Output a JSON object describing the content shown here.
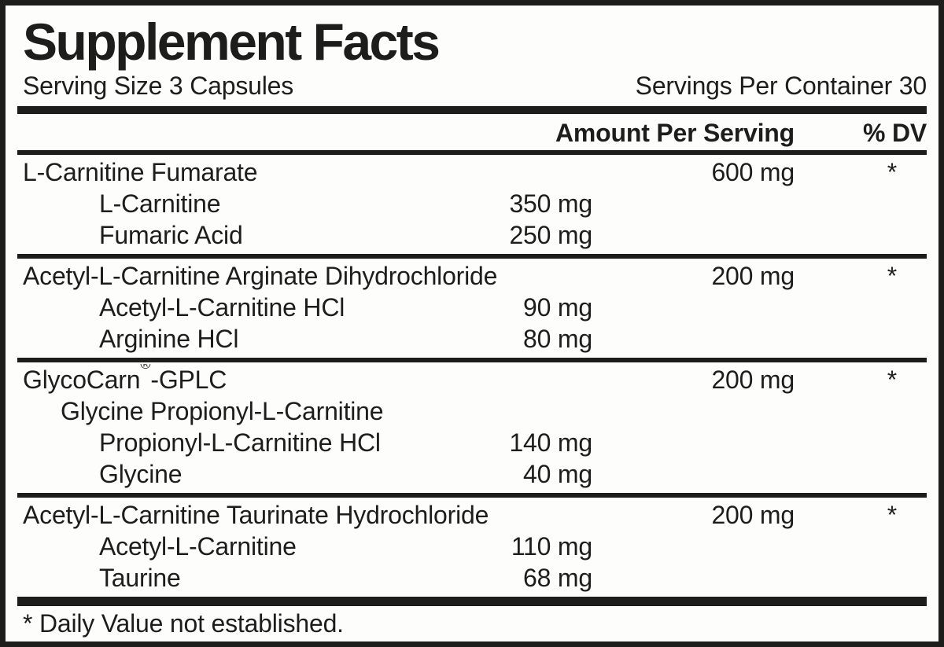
{
  "title": "Supplement Facts",
  "serving": {
    "size": "Serving Size 3 Capsules",
    "per_container": "Servings Per Container 30"
  },
  "header": {
    "amount": "Amount Per Serving",
    "dv": "% DV"
  },
  "groups": [
    {
      "rows": [
        {
          "name": "L-Carnitine Fumarate",
          "indent": 0,
          "amount": "600 mg",
          "amount_col": "main",
          "dv": "*"
        },
        {
          "name": "L-Carnitine",
          "indent": 2,
          "amount": "350 mg",
          "amount_col": "sub",
          "dv": ""
        },
        {
          "name": "Fumaric Acid",
          "indent": 2,
          "amount": "250 mg",
          "amount_col": "sub",
          "dv": ""
        }
      ]
    },
    {
      "rows": [
        {
          "name": "Acetyl-L-Carnitine Arginate Dihydrochloride",
          "indent": 0,
          "amount": "200 mg",
          "amount_col": "main",
          "dv": "*"
        },
        {
          "name": "Acetyl-L-Carnitine HCl",
          "indent": 2,
          "amount": "90 mg",
          "amount_col": "sub",
          "dv": ""
        },
        {
          "name": "Arginine HCl",
          "indent": 2,
          "amount": "80 mg",
          "amount_col": "sub",
          "dv": ""
        }
      ]
    },
    {
      "rows": [
        {
          "name": "GlycoCarn®-GPLC",
          "indent": 0,
          "amount": "200 mg",
          "amount_col": "main",
          "dv": "*"
        },
        {
          "name": "Glycine Propionyl-L-Carnitine",
          "indent": 1,
          "amount": "",
          "amount_col": "none",
          "dv": ""
        },
        {
          "name": "Propionyl-L-Carnitine HCl",
          "indent": 2,
          "amount": "140 mg",
          "amount_col": "sub",
          "dv": ""
        },
        {
          "name": "Glycine",
          "indent": 2,
          "amount": "40 mg",
          "amount_col": "sub",
          "dv": ""
        }
      ]
    },
    {
      "rows": [
        {
          "name": "Acetyl-L-Carnitine Taurinate Hydrochloride",
          "indent": 0,
          "amount": "200 mg",
          "amount_col": "main",
          "dv": "*"
        },
        {
          "name": "Acetyl-L-Carnitine",
          "indent": 2,
          "amount": "110 mg",
          "amount_col": "sub",
          "dv": ""
        },
        {
          "name": "Taurine",
          "indent": 2,
          "amount": "68 mg",
          "amount_col": "sub",
          "dv": ""
        }
      ]
    }
  ],
  "footnote": "* Daily Value not established.",
  "colors": {
    "ink": "#1d1d1b",
    "paper": "#fdfdfc"
  }
}
